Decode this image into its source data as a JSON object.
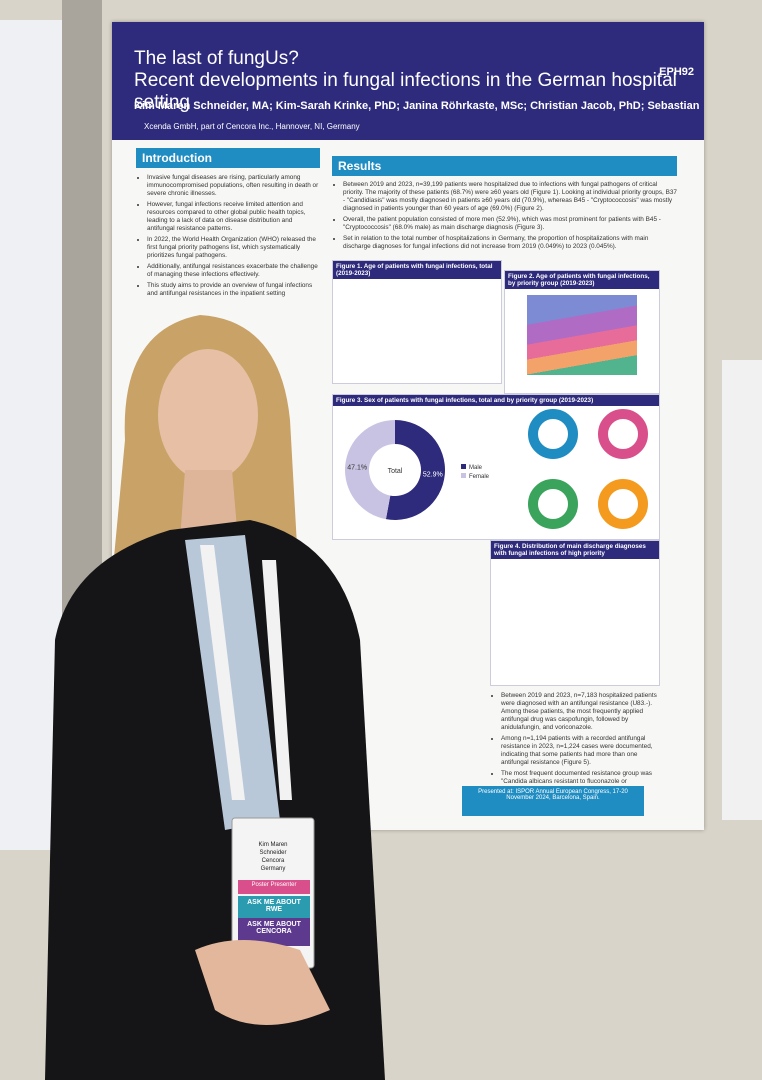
{
  "poster": {
    "code": "EPH92",
    "title_line1": "The last of fungUs?",
    "title_line2": "Recent developments in fungal infections in the German hospital setting",
    "authors": "Kim Maren Schneider, MA; Kim-Sarah Krinke, PhD; Janina Röhrkaste, MSc; Christian Jacob, PhD; Sebastian Braun, PhD",
    "affiliation": "Xcenda GmbH, part of Cencora Inc., Hannover, NI, Germany",
    "introduction": {
      "heading": "Introduction",
      "bullets": [
        "Invasive fungal diseases are rising, particularly among immunocompromised populations, often resulting in death or severe chronic illnesses.",
        "However, fungal infections receive limited attention and resources compared to other global public health topics, leading to a lack of data on disease distribution and antifungal resistance patterns.",
        "In 2022, the World Health Organization (WHO) released the first fungal priority pathogens list, which systematically prioritizes fungal pathogens.",
        "Additionally, antifungal resistances exacerbate the challenge of managing these infections effectively.",
        "This study aims to provide an overview of fungal infections and antifungal resistances in the inpatient setting"
      ]
    },
    "results": {
      "heading": "Results",
      "bullets": [
        "Between 2019 and 2023, n=39,199 patients were hospitalized due to infections with fungal pathogens of critical priority. The majority of these patients (68.7%) were ≥60 years old (Figure 1). Looking at individual priority groups, B37 - \"Candidiasis\" was mostly diagnosed in patients ≥60 years old (70.9%), whereas B45 - \"Cryptococcosis\" was mostly diagnosed in patients younger than 60 years of age (69.0%) (Figure 2).",
        "Overall, the patient population consisted of more men (52.9%), which was most prominent for patients with B45 - \"Cryptococcosis\" (68.0% male) as main discharge diagnosis (Figure 3).",
        "Set in relation to the total number of hospitalizations in Germany, the proportion of hospitalizations with main discharge diagnoses for fungal infections did not increase from 2019 (0.049%) to 2023 (0.045%)."
      ],
      "bullets_lower": [
        "Between 2019 and 2023, n=7,183 hospitalized patients were diagnosed with an antifungal resistance (U83.-). Among these patients, the most frequently applied antifungal drug was caspofungin, followed by anidulafungin, and voriconazole.",
        "Among n=1,194 patients with a recorded antifungal resistance in 2023, n=1,224 cases were documented, indicating that some patients had more than one antifungal resistance (Figure 5).",
        "The most frequent documented resistance group was \"Candida albicans resistant to fluconazole or voriconazole\" (Figure 5)."
      ]
    },
    "figures": [
      "Figure 1. Age of patients with fungal infections, total (2019-2023)",
      "Figure 2. Age of patients with fungal infections, by priority group (2019-2023)",
      "Figure 3. Sex of patients with fungal infections, total and by priority group (2019-2023)",
      "Figure 4. Distribution of main discharge diagnoses with fungal infections of high priority"
    ],
    "figure3_total": {
      "center_label": "Total",
      "categories": [
        "Male",
        "Female"
      ],
      "values": [
        52.9,
        47.1
      ],
      "value_labels": [
        "52.9%",
        "47.1%"
      ],
      "colors": [
        "#2e2a7c",
        "#c9c3e3"
      ]
    },
    "footer": "Presented at: ISPOR Annual European Congress, 17-20 November 2024, Barcelona, Spain."
  },
  "badge": {
    "name_line1": "Kim Maren",
    "name_line2": "Schneider",
    "company": "Cencora",
    "country": "Germany",
    "role": "Poster Presenter",
    "ribbon1": "ASK ME ABOUT RWE",
    "ribbon2": "ASK ME ABOUT CENCORA"
  }
}
